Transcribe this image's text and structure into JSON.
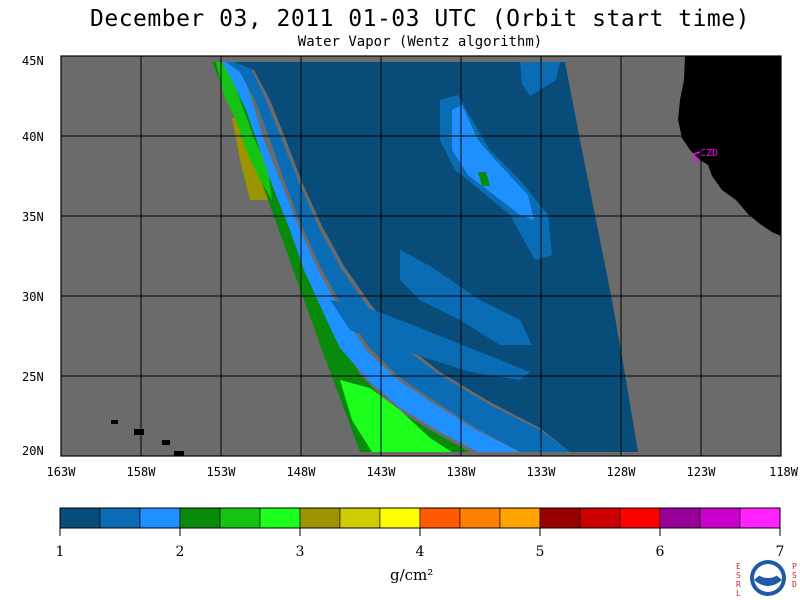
{
  "title": "December 03, 2011  01-03 UTC  (Orbit start time)",
  "subtitle": "Water Vapor (Wentz algorithm)",
  "station_label": "CZD",
  "colors": {
    "no_data": "#6b6b6b",
    "land": "#000000",
    "station": "#ff00ff"
  },
  "map": {
    "lat_ticks": [
      "45N",
      "40N",
      "35N",
      "30N",
      "25N",
      "20N"
    ],
    "lon_ticks": [
      "163W",
      "158W",
      "153W",
      "148W",
      "143W",
      "138W",
      "133W",
      "128W",
      "123W",
      "118W"
    ]
  },
  "colorbar": {
    "tick_labels": [
      "1",
      "2",
      "3",
      "4",
      "5",
      "6",
      "7"
    ],
    "unit": "g/cm²",
    "colors": [
      "#084d7a",
      "#0a6cb5",
      "#1f90ff",
      "#0a8a0a",
      "#14c414",
      "#1cff1c",
      "#9b9400",
      "#cccc00",
      "#ffff00",
      "#ff5a00",
      "#ff7f00",
      "#ffa300",
      "#990000",
      "#cc0000",
      "#ff0000",
      "#990099",
      "#cc00cc",
      "#ff22ff"
    ]
  },
  "logo": {
    "left_letters": [
      "E",
      "S",
      "R",
      "L"
    ],
    "right_letters": [
      "P",
      "S",
      "D"
    ],
    "name": "noaa-logo"
  }
}
